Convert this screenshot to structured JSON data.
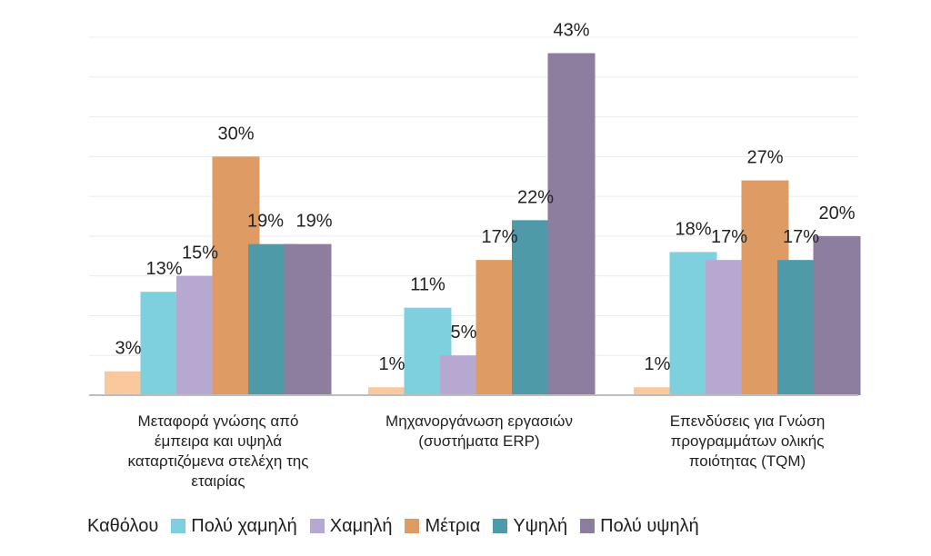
{
  "chart_data": {
    "type": "bar",
    "categories": [
      [
        "Μεταφορά γνώσης από",
        "έμπειρα και υψηλά",
        "καταρτιζόμενα στελέχη της",
        "εταιρίας"
      ],
      [
        "Μηχανοργάνωση εργασιών",
        "(συστήματα ERP)"
      ],
      [
        "Επενδύσεις για Γνώση",
        "προγραμμάτων ολικής",
        "ποιότητας (TQM)"
      ]
    ],
    "series": [
      {
        "name": "Καθόλου",
        "color": "#fbc79d",
        "values": [
          3,
          1,
          1
        ],
        "labels": [
          "3%",
          "1%",
          "1%"
        ]
      },
      {
        "name": "Πολύ χαμηλή",
        "color": "#7fd0de",
        "values": [
          13,
          11,
          18
        ],
        "labels": [
          "13%",
          "11%",
          "18%"
        ]
      },
      {
        "name": "Χαμηλή",
        "color": "#b7a8d2",
        "values": [
          15,
          5,
          17
        ],
        "labels": [
          "15%",
          "5%",
          "17%"
        ]
      },
      {
        "name": "Μέτρια",
        "color": "#de9c64",
        "values": [
          30,
          17,
          27
        ],
        "labels": [
          "30%",
          "17%",
          "27%"
        ]
      },
      {
        "name": "Υψηλή",
        "color": "#4f9aa8",
        "values": [
          19,
          22,
          17
        ],
        "labels": [
          "19%",
          "22%",
          "17%"
        ]
      },
      {
        "name": "Πολύ υψηλή",
        "color": "#8d7d9e",
        "values": [
          19,
          43,
          20
        ],
        "labels": [
          "19%",
          "43%",
          "20%"
        ]
      }
    ],
    "ylim": [
      0,
      45
    ],
    "grid": true,
    "legend_position": "bottom",
    "title": "",
    "xlabel": "",
    "ylabel": ""
  }
}
